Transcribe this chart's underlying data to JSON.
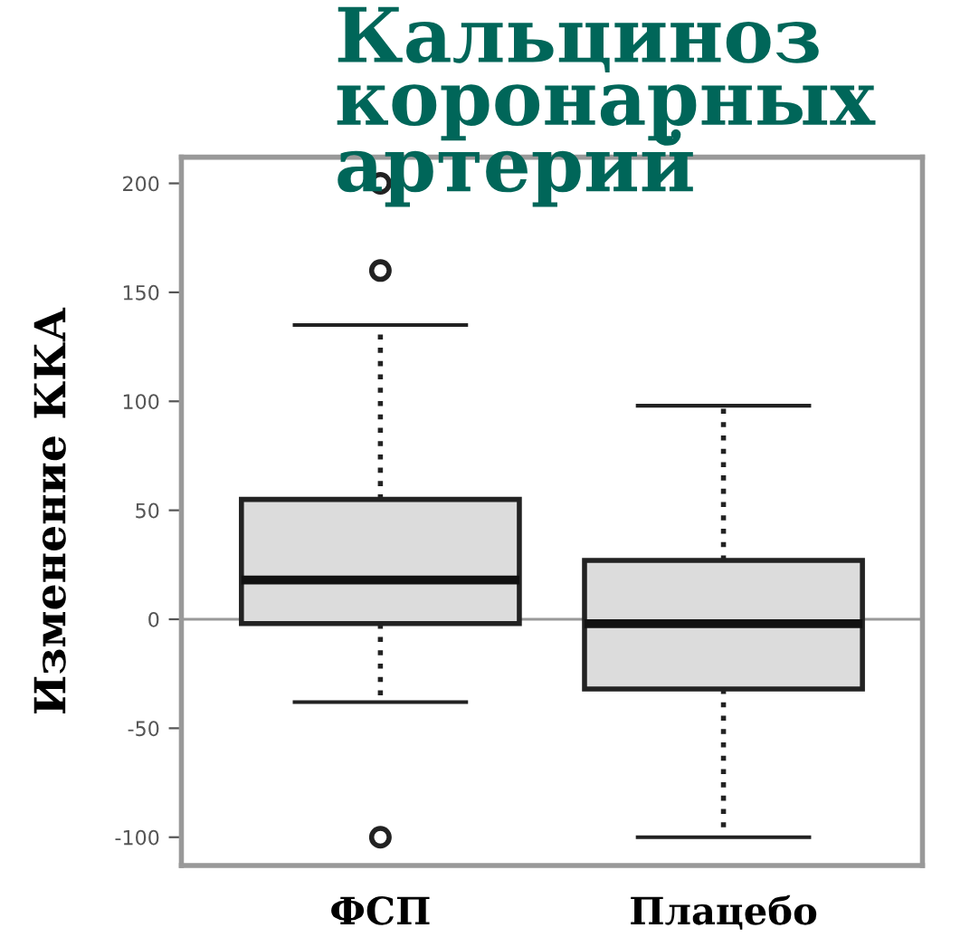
{
  "chart_data": {
    "type": "box",
    "title": "Кальциноз\nкоронарных\nартерий",
    "ylabel": "Изменение ККА",
    "categories": [
      "ФСП",
      "Плацебо"
    ],
    "boxes": [
      {
        "low": -38,
        "q1": -2,
        "median": 18,
        "q3": 55,
        "high": 135,
        "outliers": [
          200,
          160,
          -100
        ]
      },
      {
        "low": -100,
        "q1": -32,
        "median": -2,
        "q3": 27,
        "high": 98
      }
    ],
    "color": "#dcdcdc",
    "ylim": [
      -113,
      212
    ],
    "yticks": [
      -100,
      -50,
      0,
      50,
      100,
      150,
      200
    ],
    "ref_lines": [
      {
        "axis": "y",
        "value": 0,
        "color": "#999999"
      }
    ],
    "grid": false,
    "legend": false
  }
}
